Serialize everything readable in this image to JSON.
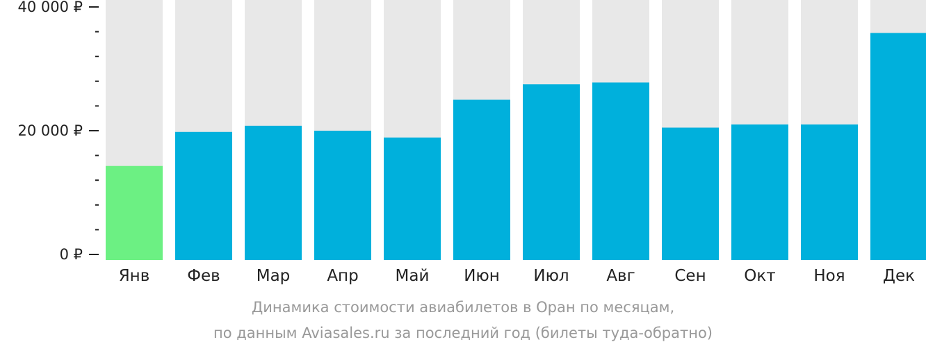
{
  "chart_data": {
    "type": "bar",
    "categories": [
      "Янв",
      "Фев",
      "Мар",
      "Апр",
      "Май",
      "Июн",
      "Июл",
      "Авг",
      "Сен",
      "Окт",
      "Ноя",
      "Дек"
    ],
    "values": [
      14300,
      19800,
      20800,
      20000,
      18900,
      25000,
      27500,
      27800,
      20500,
      21000,
      21000,
      35800
    ],
    "highlight_index": 0,
    "ylim": [
      0,
      40000
    ],
    "y_major_ticks": [
      0,
      20000,
      40000
    ],
    "y_tick_labels": [
      "0 ₽",
      "20 000 ₽",
      "40 000 ₽"
    ],
    "y_minor_step": 4000,
    "grid": false,
    "colors": {
      "bar": "#00b0dc",
      "highlight": "#6cf083",
      "background_bar": "#e8e8e8",
      "axis": "#222222"
    },
    "caption_line1": "Динамика стоимости авиабилетов в Оран по месяцам,",
    "caption_line2": "по данным Aviasales.ru за последний год (билеты туда-обратно)"
  }
}
